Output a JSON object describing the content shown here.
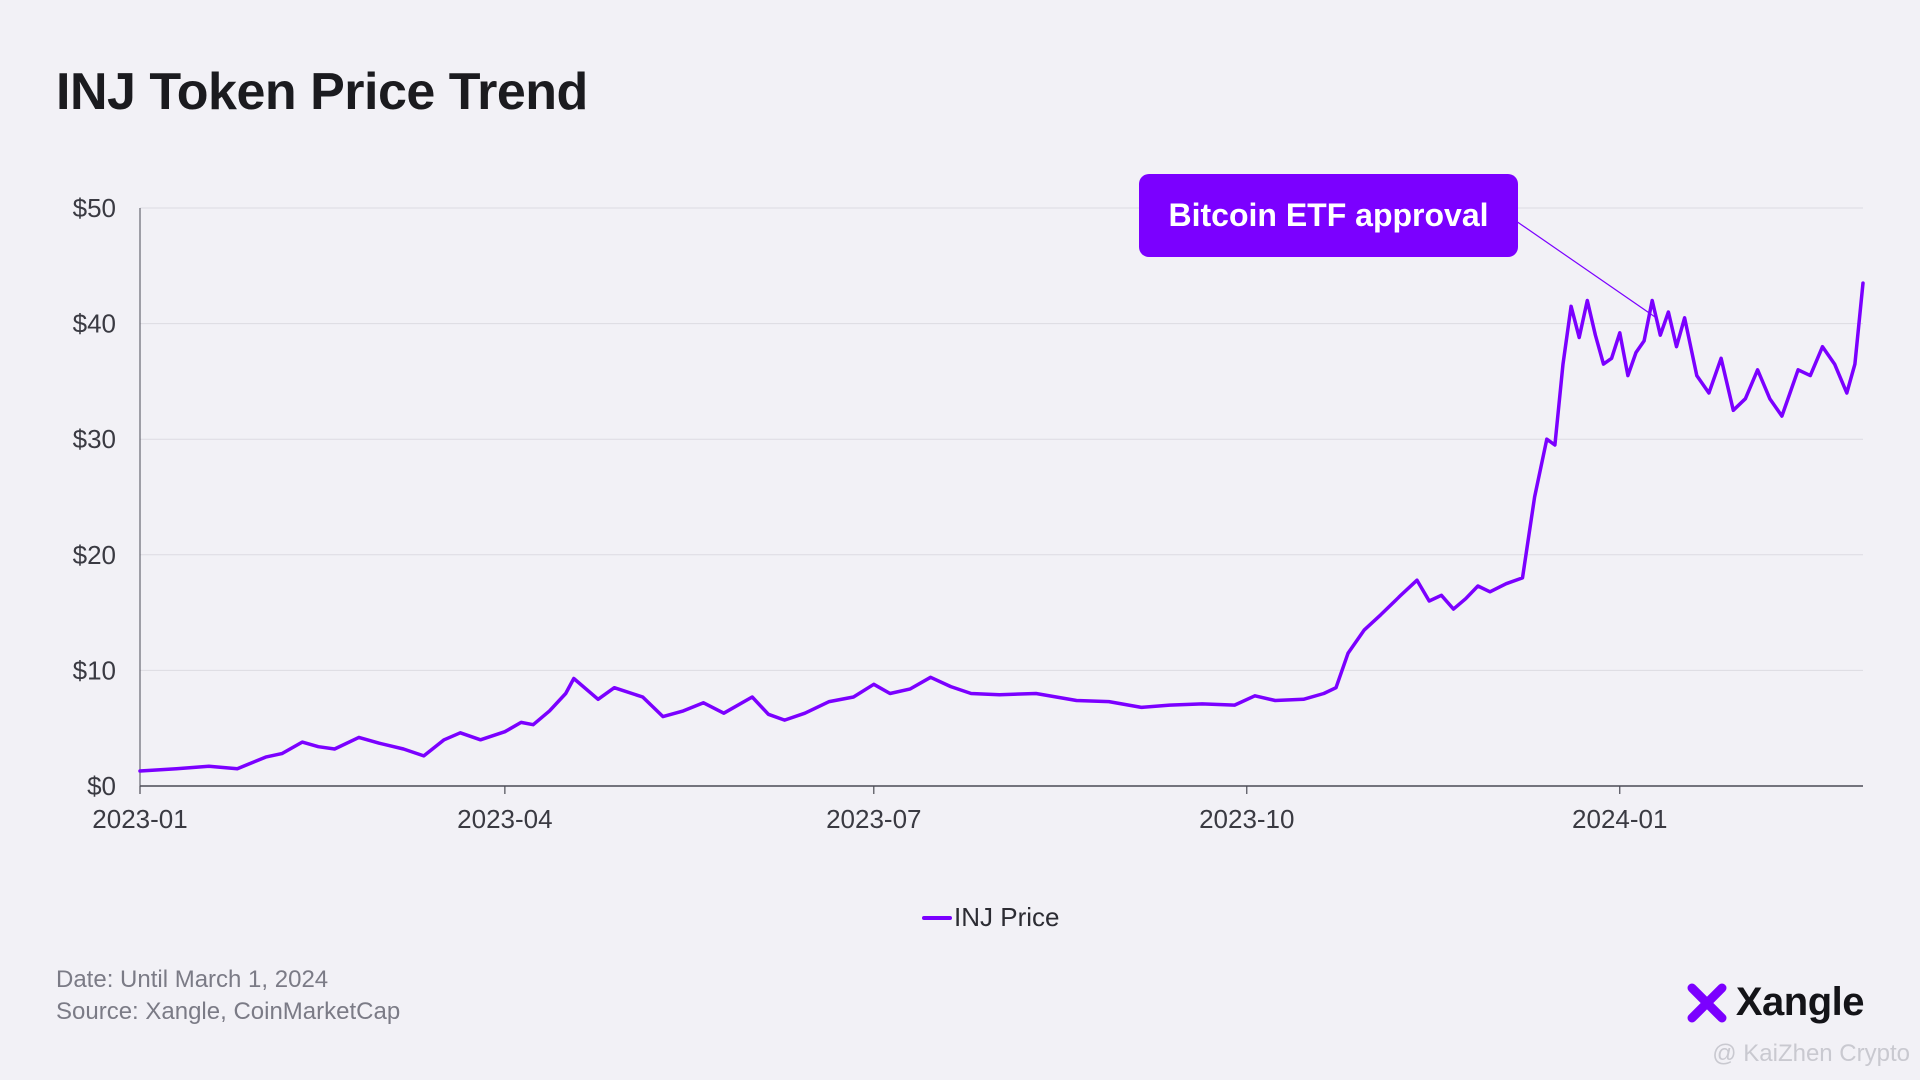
{
  "page": {
    "title": "INJ Token Price Trend",
    "footer_date": "Date: Until March 1, 2024",
    "footer_source": "Source: Xangle, CoinMarketCap",
    "brand": "Xangle",
    "watermark": "@ KaiZhen Crypto"
  },
  "colors": {
    "line": "#7b00ff",
    "grid": "#dcdbe2",
    "axis": "#4b4b55",
    "background": "#f2f1f6"
  },
  "chart_data": {
    "type": "line",
    "title": "INJ Token Price Trend",
    "xlabel": "",
    "ylabel": "",
    "ylim": [
      0,
      50
    ],
    "xlim": [
      "2023-01-01",
      "2024-03-01"
    ],
    "grid": true,
    "legend_position": "bottom-center",
    "y_ticks": [
      0,
      10,
      20,
      30,
      40,
      50
    ],
    "y_tick_labels": [
      "$0",
      "$10",
      "$20",
      "$30",
      "$40",
      "$50"
    ],
    "x_ticks": [
      "2023-01-01",
      "2023-04-01",
      "2023-07-01",
      "2023-10-01",
      "2024-01-01"
    ],
    "x_tick_labels": [
      "2023-01",
      "2023-04",
      "2023-07",
      "2023-10",
      "2024-01"
    ],
    "series": [
      {
        "name": "INJ Price",
        "x": [
          "2023-01-01",
          "2023-01-10",
          "2023-01-18",
          "2023-01-25",
          "2023-02-01",
          "2023-02-05",
          "2023-02-10",
          "2023-02-14",
          "2023-02-18",
          "2023-02-24",
          "2023-03-01",
          "2023-03-07",
          "2023-03-12",
          "2023-03-17",
          "2023-03-21",
          "2023-03-26",
          "2023-04-01",
          "2023-04-05",
          "2023-04-08",
          "2023-04-12",
          "2023-04-16",
          "2023-04-18",
          "2023-04-24",
          "2023-04-28",
          "2023-05-05",
          "2023-05-10",
          "2023-05-15",
          "2023-05-20",
          "2023-05-25",
          "2023-06-01",
          "2023-06-05",
          "2023-06-09",
          "2023-06-14",
          "2023-06-20",
          "2023-06-26",
          "2023-07-01",
          "2023-07-05",
          "2023-07-10",
          "2023-07-15",
          "2023-07-20",
          "2023-07-25",
          "2023-08-01",
          "2023-08-10",
          "2023-08-20",
          "2023-08-28",
          "2023-09-05",
          "2023-09-12",
          "2023-09-20",
          "2023-09-28",
          "2023-10-03",
          "2023-10-08",
          "2023-10-15",
          "2023-10-20",
          "2023-10-23",
          "2023-10-26",
          "2023-10-30",
          "2023-11-03",
          "2023-11-08",
          "2023-11-12",
          "2023-11-15",
          "2023-11-18",
          "2023-11-21",
          "2023-11-24",
          "2023-11-27",
          "2023-11-30",
          "2023-12-04",
          "2023-12-08",
          "2023-12-11",
          "2023-12-14",
          "2023-12-16",
          "2023-12-18",
          "2023-12-20",
          "2023-12-22",
          "2023-12-24",
          "2023-12-26",
          "2023-12-28",
          "2023-12-30",
          "2024-01-01",
          "2024-01-03",
          "2024-01-05",
          "2024-01-07",
          "2024-01-09",
          "2024-01-11",
          "2024-01-13",
          "2024-01-15",
          "2024-01-17",
          "2024-01-20",
          "2024-01-23",
          "2024-01-26",
          "2024-01-29",
          "2024-02-01",
          "2024-02-04",
          "2024-02-07",
          "2024-02-10",
          "2024-02-12",
          "2024-02-14",
          "2024-02-17",
          "2024-02-20",
          "2024-02-23",
          "2024-02-26",
          "2024-02-28",
          "2024-03-01"
        ],
        "values": [
          1.3,
          1.5,
          1.7,
          1.5,
          2.5,
          2.8,
          3.8,
          3.4,
          3.2,
          4.2,
          3.7,
          3.2,
          2.6,
          4.0,
          4.6,
          4.0,
          4.7,
          5.5,
          5.3,
          6.5,
          8.0,
          9.3,
          7.5,
          8.5,
          7.7,
          6.0,
          6.5,
          7.2,
          6.3,
          7.7,
          6.2,
          5.7,
          6.3,
          7.3,
          7.7,
          8.8,
          8.0,
          8.4,
          9.4,
          8.6,
          8.0,
          7.9,
          8.0,
          7.4,
          7.3,
          6.8,
          7.0,
          7.1,
          7.0,
          7.8,
          7.4,
          7.5,
          8.0,
          8.5,
          11.5,
          13.5,
          14.8,
          16.5,
          17.8,
          16.0,
          16.5,
          15.3,
          16.2,
          17.3,
          16.8,
          17.5,
          18.0,
          25.0,
          30.0,
          29.5,
          36.5,
          41.5,
          38.8,
          42.0,
          39.0,
          36.5,
          37.0,
          39.2,
          35.5,
          37.5,
          38.5,
          42.0,
          39.0,
          41.0,
          38.0,
          40.5,
          35.5,
          34.0,
          37.0,
          32.5,
          33.5,
          36.0,
          33.5,
          32.0,
          34.0,
          36.0,
          35.5,
          38.0,
          36.5,
          34.0,
          36.5,
          43.5
        ]
      }
    ],
    "annotations": [
      {
        "text": "Bitcoin ETF approval",
        "x": "2024-01-10",
        "y": 40.5
      }
    ]
  }
}
